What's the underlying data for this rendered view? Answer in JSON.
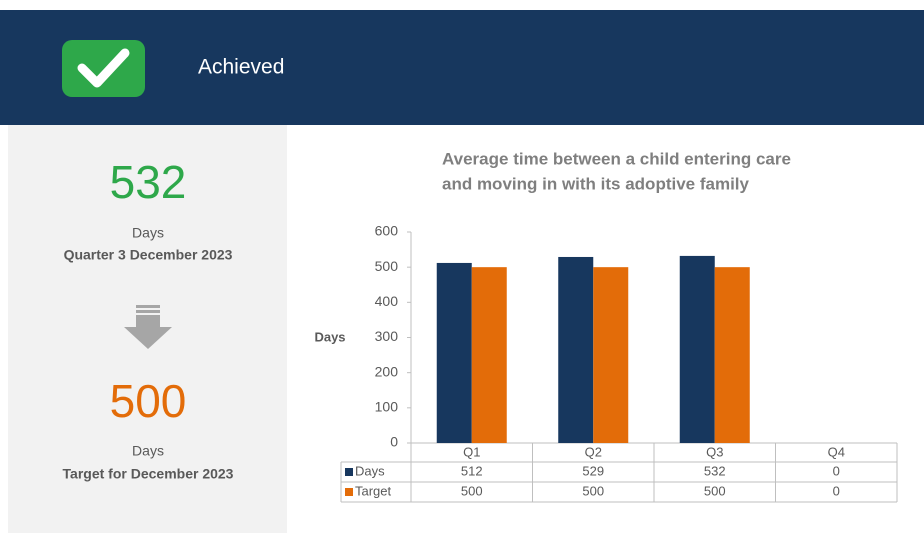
{
  "header": {
    "status": "Achieved"
  },
  "summary": {
    "actual": {
      "value": 532,
      "unit": "Days",
      "label": "Quarter 3 December 2023"
    },
    "target": {
      "value": 500,
      "unit": "Days",
      "label": "Target for December 2023"
    }
  },
  "chart_data": {
    "type": "bar",
    "title": [
      "Average time between a child entering care",
      "and moving in with its adoptive family"
    ],
    "y_label": "Days",
    "categories": [
      "Q1",
      "Q2",
      "Q3",
      "Q4"
    ],
    "series": [
      {
        "name": "Days",
        "color": "#17375e",
        "values": [
          512,
          529,
          532,
          0
        ]
      },
      {
        "name": "Target",
        "color": "#e36c09",
        "values": [
          500,
          500,
          500,
          0
        ]
      }
    ],
    "ylim": [
      0,
      600
    ],
    "yticks": [
      0,
      100,
      200,
      300,
      400,
      500,
      600
    ]
  }
}
